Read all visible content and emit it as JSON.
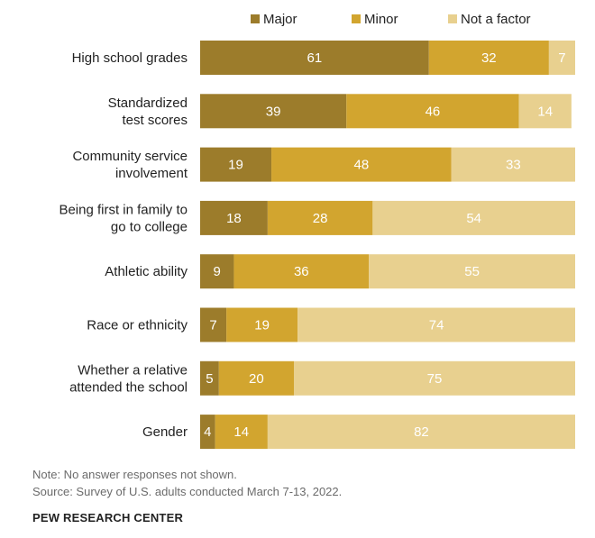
{
  "chart_data": {
    "type": "bar",
    "orientation": "horizontal",
    "stacked": true,
    "categories": [
      [
        "High school grades"
      ],
      [
        "Standardized",
        "test scores"
      ],
      [
        "Community service",
        "involvement"
      ],
      [
        "Being first in family to",
        "go to college"
      ],
      [
        "Athletic ability"
      ],
      [
        "Race or ethnicity"
      ],
      [
        "Whether a relative",
        "attended the school"
      ],
      [
        "Gender"
      ]
    ],
    "series": [
      {
        "name": "Major",
        "color": "#9c7c2b",
        "values": [
          61,
          39,
          19,
          18,
          9,
          7,
          5,
          4
        ]
      },
      {
        "name": "Minor",
        "color": "#d2a52f",
        "values": [
          32,
          46,
          48,
          28,
          36,
          19,
          20,
          14
        ]
      },
      {
        "name": "Not a factor",
        "color": "#e8d08f",
        "values": [
          7,
          14,
          33,
          54,
          55,
          74,
          75,
          82
        ]
      }
    ],
    "label_color": "#ffffff",
    "legend_position": "top",
    "xlim": [
      0,
      100
    ]
  },
  "notes": {
    "line1": "Note: No answer responses not shown.",
    "line2": "Source: Survey of U.S. adults conducted March 7-13, 2022."
  },
  "brand": "PEW RESEARCH CENTER"
}
